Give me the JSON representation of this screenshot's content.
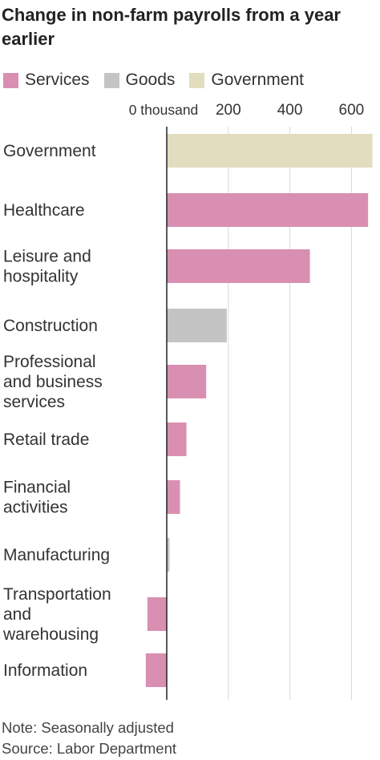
{
  "header": {
    "title": "Change in non-farm payrolls from a year earlier"
  },
  "legend": [
    {
      "label": "Services",
      "color": "#d98fb2"
    },
    {
      "label": "Goods",
      "color": "#c4c4c4"
    },
    {
      "label": "Government",
      "color": "#e2ddbf"
    }
  ],
  "chart_data": {
    "type": "bar",
    "orientation": "horizontal",
    "title": "Change in non-farm payrolls from a year earlier",
    "x_tick_labels": [
      "0 thousand",
      "200",
      "400",
      "600"
    ],
    "x_ticks": [
      0,
      200,
      400,
      600
    ],
    "xlim": [
      -70,
      670
    ],
    "grid": true,
    "legend_position": "top",
    "categories": [
      {
        "label": [
          "Government"
        ],
        "value": 668,
        "group": "Government"
      },
      {
        "label": [
          "Healthcare"
        ],
        "value": 654,
        "group": "Services"
      },
      {
        "label": [
          "Leisure and",
          "hospitality"
        ],
        "value": 465,
        "group": "Services"
      },
      {
        "label": [
          "Construction"
        ],
        "value": 195,
        "group": "Goods"
      },
      {
        "label": [
          "Professional",
          "and business",
          "services"
        ],
        "value": 128,
        "group": "Services"
      },
      {
        "label": [
          "Retail trade"
        ],
        "value": 64,
        "group": "Services"
      },
      {
        "label": [
          "Financial",
          "activities"
        ],
        "value": 43,
        "group": "Services"
      },
      {
        "label": [
          "Manufacturing"
        ],
        "value": 9,
        "group": "Goods"
      },
      {
        "label": [
          "Transportation",
          "and",
          "warehousing"
        ],
        "value": -63,
        "group": "Services"
      },
      {
        "label": [
          "Information"
        ],
        "value": -68,
        "group": "Services"
      }
    ]
  },
  "notes": {
    "note": "Note: Seasonally adjusted",
    "source": "Source: Labor Department"
  }
}
